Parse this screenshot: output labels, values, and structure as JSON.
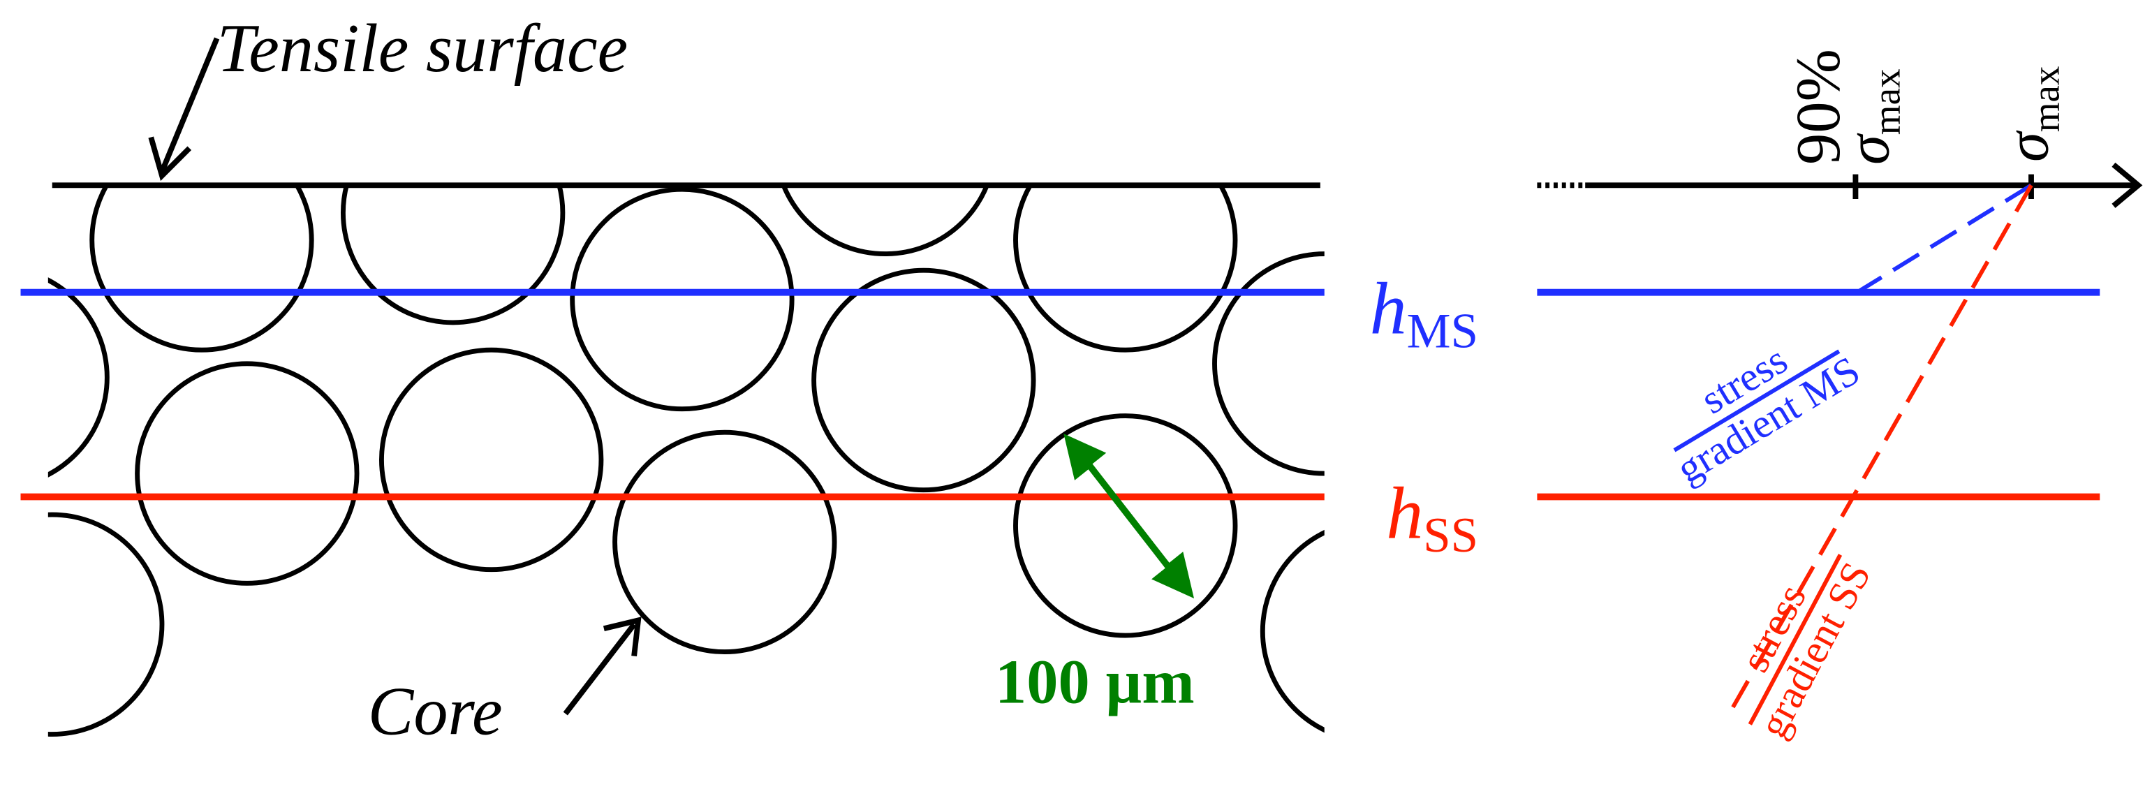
{
  "labels": {
    "tensile_surface": "Tensile surface",
    "core": "Core",
    "scale_bar": "100 µm",
    "h_ms": {
      "symbol": "h",
      "subscript": "MS"
    },
    "h_ss": {
      "symbol": "h",
      "subscript": "SS"
    },
    "tick_90": {
      "percent": "90%",
      "symbol": "σ",
      "subscript": "max"
    },
    "tick_max": {
      "symbol": "σ",
      "subscript": "max"
    },
    "gradient_ms": {
      "numerator": "stress",
      "denominator": "gradient MS"
    },
    "gradient_ss": {
      "numerator": "stress",
      "denominator": "gradient SS"
    }
  }
}
